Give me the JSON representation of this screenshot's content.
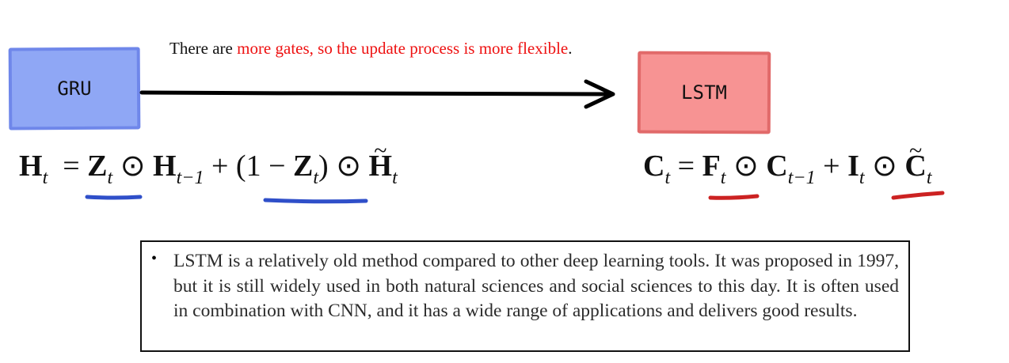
{
  "nodes": {
    "gru": {
      "label": "GRU",
      "fill": "#8fa7f5",
      "stroke": "#6f87ea"
    },
    "lstm": {
      "label": "LSTM",
      "fill": "#f79393",
      "stroke": "#e16a6a"
    }
  },
  "note": {
    "prefix": "There are ",
    "highlight": "more gates, so the update process is more flexible",
    "suffix": ".",
    "highlight_color": "#ee1111"
  },
  "gru_equation": {
    "H": "H",
    "t": "t",
    "eq": "=",
    "Z": "Z",
    "odot": "⊙",
    "tminus1": "t−1",
    "plus": "+",
    "open": "(1 − ",
    "close": ")"
  },
  "lstm_equation": {
    "C": "C",
    "t": "t",
    "eq": "=",
    "F": "F",
    "odot": "⊙",
    "tminus1": "t−1",
    "plus": "+",
    "I": "I"
  },
  "underline_colors": {
    "gru": "#2f4fc9",
    "lstm": "#cc2222"
  },
  "info": {
    "bullet": "•",
    "text": "LSTM is a relatively old method compared to other deep learning tools. It was proposed in 1997, but it is still widely used in both natural sciences and social sciences to this day. It is often used in combination with CNN, and it has a wide range of applications and delivers good results."
  }
}
